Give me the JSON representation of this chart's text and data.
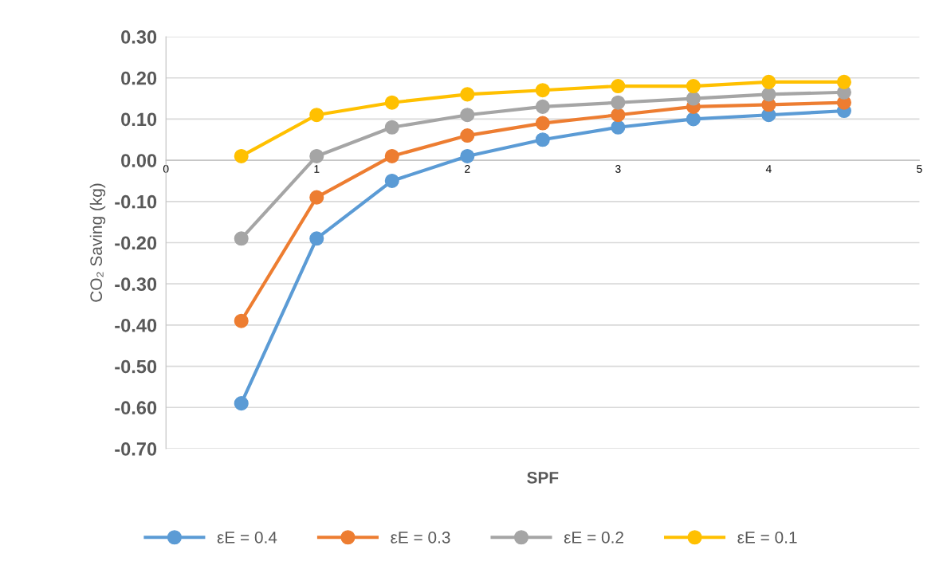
{
  "chart_data": {
    "type": "line",
    "xlabel": "SPF",
    "ylabel": "CO₂ Saving (kg)",
    "x": [
      0.5,
      1,
      1.5,
      2,
      2.5,
      3,
      3.5,
      4,
      4.5
    ],
    "xlim": [
      0,
      5
    ],
    "xticks": [
      0,
      1,
      2,
      3,
      4,
      5
    ],
    "ylim": [
      -0.7,
      0.3
    ],
    "yticks": [
      {
        "value": -0.7,
        "label": "-0.70"
      },
      {
        "value": -0.6,
        "label": "-0.60"
      },
      {
        "value": -0.5,
        "label": "-0.50"
      },
      {
        "value": -0.4,
        "label": "-0.40"
      },
      {
        "value": -0.3,
        "label": "-0.30"
      },
      {
        "value": -0.2,
        "label": "-0.20"
      },
      {
        "value": -0.1,
        "label": "-0.10"
      },
      {
        "value": 0,
        "label": "0.00"
      },
      {
        "value": 0.1,
        "label": "0.10"
      },
      {
        "value": 0.2,
        "label": "0.20"
      },
      {
        "value": 0.3,
        "label": "0.30"
      }
    ],
    "grid": "y",
    "legend": "bottom",
    "marker": "circle",
    "line_style": "solid",
    "series": [
      {
        "name": "εE = 0.4",
        "color": "#5b9bd5",
        "values": [
          -0.59,
          -0.19,
          -0.05,
          0.01,
          0.05,
          0.08,
          0.1,
          0.11,
          0.12
        ]
      },
      {
        "name": "εE = 0.3",
        "color": "#ed7d31",
        "values": [
          -0.39,
          -0.09,
          0.01,
          0.06,
          0.09,
          0.11,
          0.13,
          0.135,
          0.14
        ]
      },
      {
        "name": "εE = 0.2",
        "color": "#a5a5a5",
        "values": [
          -0.19,
          0.01,
          0.08,
          0.11,
          0.13,
          0.14,
          0.15,
          0.16,
          0.165
        ]
      },
      {
        "name": "εE = 0.1",
        "color": "#ffc000",
        "values": [
          0.01,
          0.11,
          0.14,
          0.16,
          0.17,
          0.18,
          0.18,
          0.19,
          0.19
        ]
      }
    ]
  }
}
